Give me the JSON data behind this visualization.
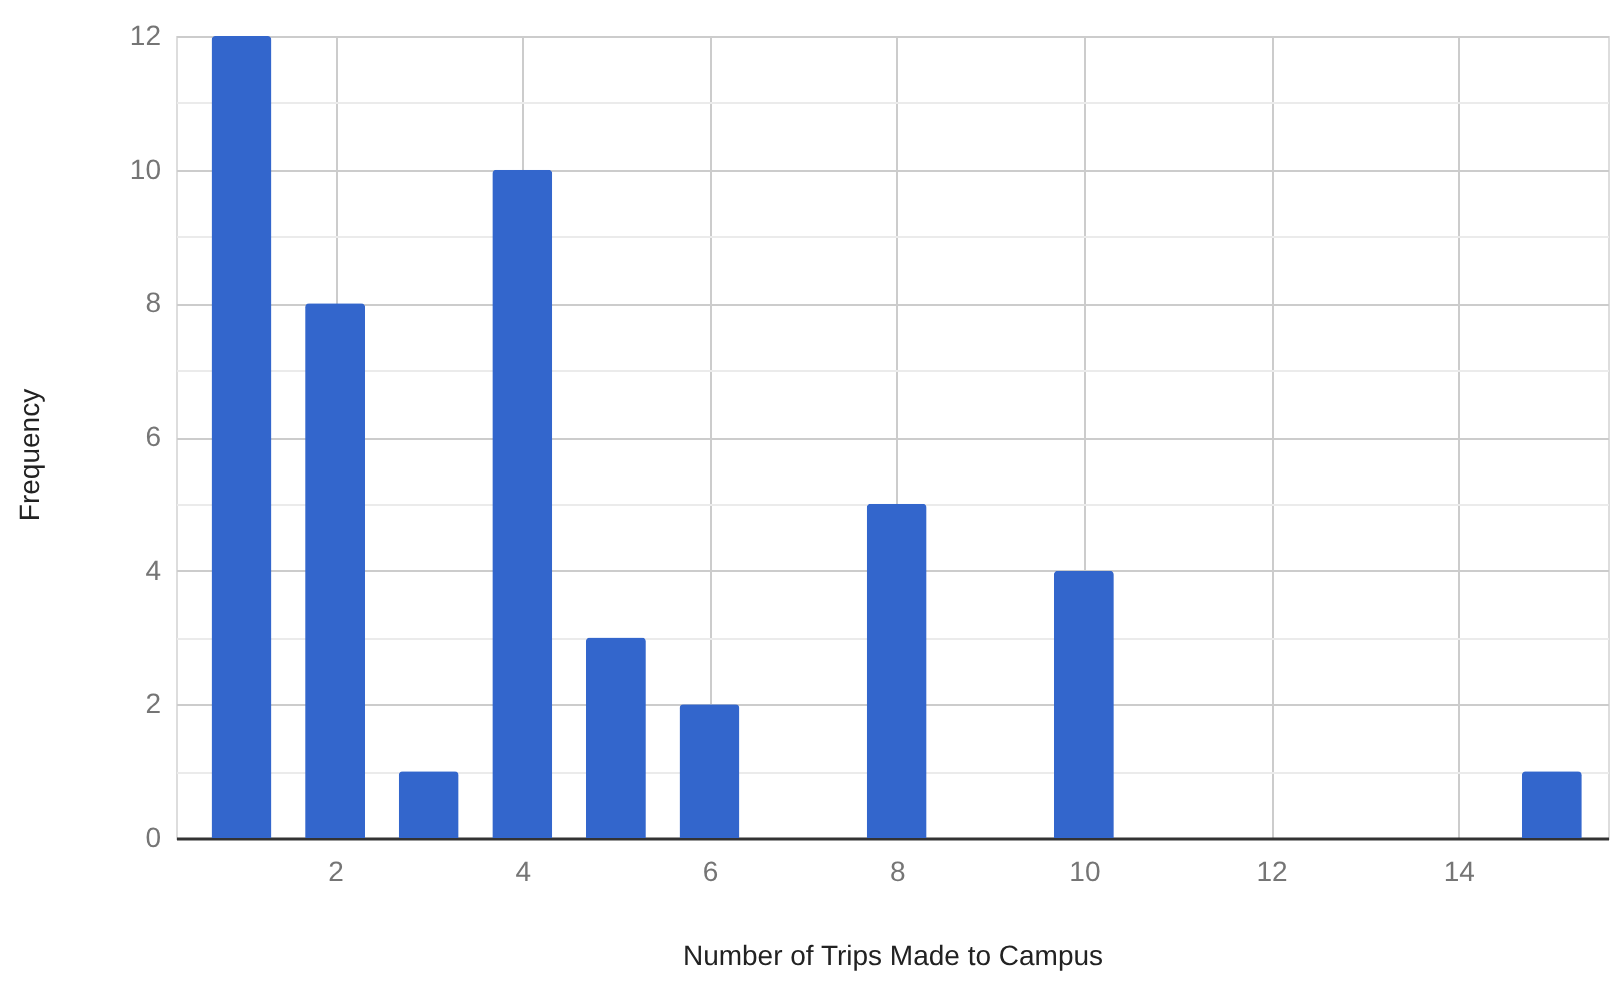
{
  "chart_data": {
    "type": "bar",
    "xlabel": "Number of Trips Made to Campus",
    "ylabel": "Frequency",
    "x": [
      1,
      2,
      3,
      4,
      5,
      6,
      8,
      10,
      15
    ],
    "values": [
      12,
      8,
      1,
      10,
      3,
      2,
      5,
      4,
      1
    ],
    "color": "#3366cc",
    "xlim": [
      0.3,
      15.6
    ],
    "xticks": [
      2,
      4,
      6,
      8,
      10,
      12,
      14
    ],
    "ylim": [
      0,
      12
    ],
    "yticks": [
      0,
      {
        "value": 1,
        "label": null
      },
      2,
      {
        "value": 3,
        "label": null
      },
      4,
      {
        "value": 5,
        "label": null
      },
      6,
      {
        "value": 7,
        "label": null
      },
      8,
      {
        "value": 9,
        "label": null
      },
      10,
      {
        "value": 11,
        "label": null
      },
      12
    ],
    "grid": true
  }
}
